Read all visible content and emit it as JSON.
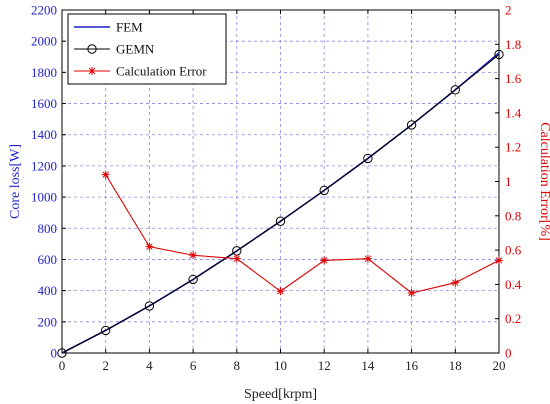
{
  "chart_data": {
    "type": "line",
    "x": [
      0,
      2,
      4,
      6,
      8,
      10,
      12,
      14,
      16,
      18,
      20
    ],
    "xticks": [
      "0",
      "2",
      "4",
      "6",
      "8",
      "10",
      "12",
      "14",
      "16",
      "18",
      "20"
    ],
    "xlim": [
      0,
      20
    ],
    "xlabel": "Speed[krpm]",
    "ylabel_left": "Core loss[W]",
    "ylim_left": [
      0,
      2200
    ],
    "yticks_left": [
      "0",
      "200",
      "400",
      "600",
      "800",
      "1000",
      "1200",
      "1400",
      "1600",
      "1800",
      "2000",
      "2200"
    ],
    "ylabel_right": "Calculation Error[%]",
    "ylim_right": [
      0,
      2
    ],
    "yticks_right": [
      "0",
      "0.2",
      "0.4",
      "0.6",
      "0.8",
      "1",
      "1.2",
      "1.4",
      "1.6",
      "1.8",
      "2"
    ],
    "grid": true,
    "legend_position": "top-left",
    "series": [
      {
        "name": "FEM",
        "axis": "left",
        "color": "#1f1fcc",
        "marker": "none",
        "x": [
          0,
          2,
          4,
          6,
          8,
          10,
          12,
          14,
          16,
          18,
          20
        ],
        "values": [
          0,
          145,
          302,
          472,
          655,
          845,
          1043,
          1248,
          1463,
          1688,
          1925
        ]
      },
      {
        "name": "GEMN",
        "axis": "left",
        "color": "#000000",
        "marker": "circle",
        "x": [
          0,
          2,
          4,
          6,
          8,
          10,
          12,
          14,
          16,
          18,
          20
        ],
        "values": [
          0,
          145,
          302,
          472,
          655,
          845,
          1043,
          1248,
          1463,
          1688,
          1915
        ]
      },
      {
        "name": "Calculation Error",
        "axis": "right",
        "color": "#e00000",
        "marker": "star",
        "x": [
          2,
          4,
          6,
          8,
          10,
          12,
          14,
          16,
          18,
          20
        ],
        "values": [
          1.04,
          0.62,
          0.57,
          0.55,
          0.36,
          0.54,
          0.55,
          0.35,
          0.41,
          0.54
        ]
      }
    ]
  }
}
